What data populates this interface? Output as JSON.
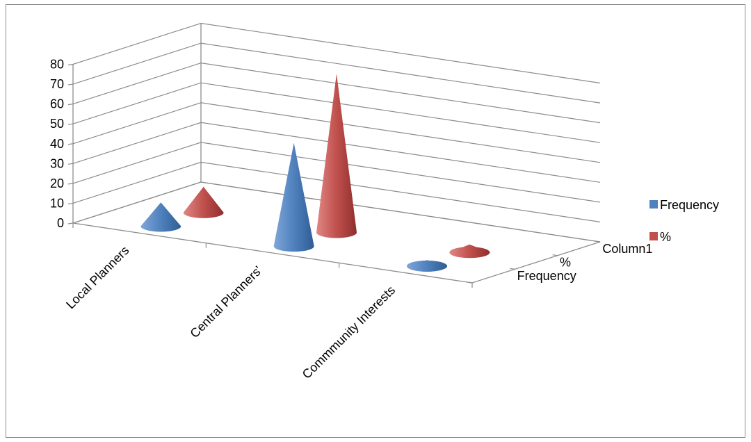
{
  "chart_data": {
    "type": "bar",
    "subtype": "3d-cone",
    "title": "",
    "xlabel": "",
    "ylabel": "",
    "ylim": [
      0,
      80
    ],
    "yticks": [
      0,
      10,
      20,
      30,
      40,
      50,
      60,
      70,
      80
    ],
    "grid": true,
    "legend_position": "right",
    "categories": [
      "Local Planners",
      "Central Planners'",
      "Commmunity Interests"
    ],
    "depth_labels": [
      "Frequency",
      "%",
      "Column1"
    ],
    "series": [
      {
        "name": "Frequency",
        "color": "#4f81bd",
        "values": [
          12,
          52,
          3
        ]
      },
      {
        "name": "%",
        "color": "#c0504d",
        "values": [
          13,
          80,
          4
        ]
      }
    ],
    "legend": [
      {
        "name": "Frequency",
        "color": "#4f81bd"
      },
      {
        "name": "%",
        "color": "#c0504d"
      }
    ]
  }
}
